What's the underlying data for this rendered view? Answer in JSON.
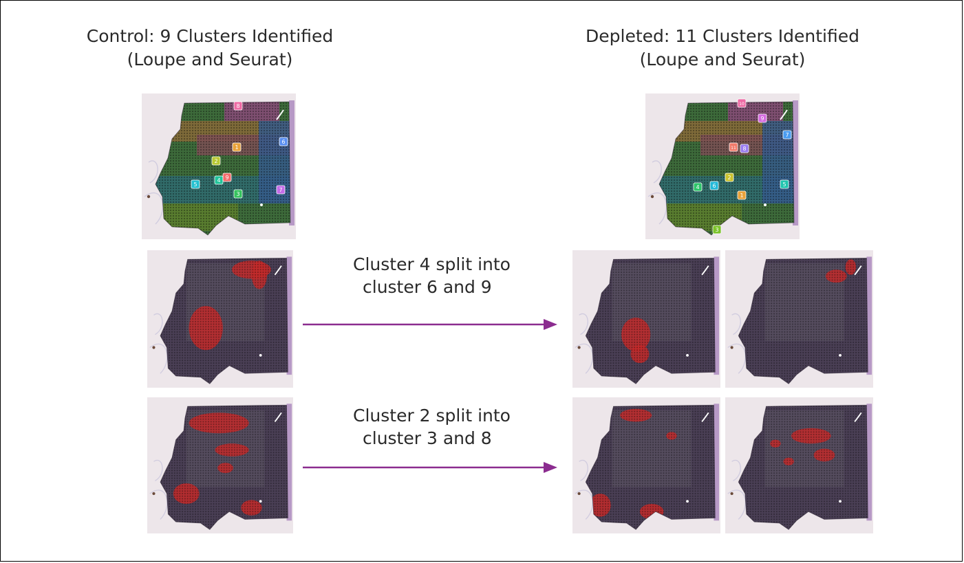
{
  "control": {
    "title_line1": "Control: 9 Clusters Identified",
    "title_line2": "(Loupe and Seurat)",
    "cluster_labels": [
      {
        "n": "1",
        "color": "#e8a23a"
      },
      {
        "n": "2",
        "color": "#b7c832"
      },
      {
        "n": "3",
        "color": "#36c25e"
      },
      {
        "n": "4",
        "color": "#22c49a"
      },
      {
        "n": "5",
        "color": "#23c0d0"
      },
      {
        "n": "6",
        "color": "#5a8ff0"
      },
      {
        "n": "7",
        "color": "#c46be8"
      },
      {
        "n": "8",
        "color": "#ee6aa4"
      },
      {
        "n": "9",
        "color": "#f26a6a"
      }
    ]
  },
  "depleted": {
    "title_line1": "Depleted: 11 Clusters Identified",
    "title_line2": "(Loupe and Seurat)",
    "cluster_labels": [
      {
        "n": "1",
        "color": "#e8a23a"
      },
      {
        "n": "2",
        "color": "#c9c22e"
      },
      {
        "n": "3",
        "color": "#7cc32a"
      },
      {
        "n": "4",
        "color": "#2ec46a"
      },
      {
        "n": "5",
        "color": "#1fc4ae"
      },
      {
        "n": "6",
        "color": "#22b8d8"
      },
      {
        "n": "7",
        "color": "#4a9cf0"
      },
      {
        "n": "8",
        "color": "#9a7cf0"
      },
      {
        "n": "9",
        "color": "#d56ae0"
      },
      {
        "n": "10",
        "color": "#ee6aa4"
      },
      {
        "n": "11",
        "color": "#f27a6a"
      }
    ]
  },
  "splits": [
    {
      "line1": "Cluster 4 split into",
      "line2": "cluster 6 and 9"
    },
    {
      "line1": "Cluster 2 split into",
      "line2": "cluster 3 and 8"
    }
  ],
  "colors": {
    "arrow": "#8b2c8f",
    "highlight": "#c42a2a",
    "tissue_base": "#4a3f55",
    "stain_edge": "#8a5aa8"
  }
}
